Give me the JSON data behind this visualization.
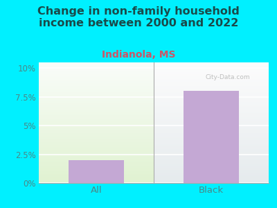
{
  "title": "Change in non-family household\nincome between 2000 and 2022",
  "subtitle": "Indianola, MS",
  "categories": [
    "All",
    "Black"
  ],
  "values": [
    2.0,
    8.0
  ],
  "bar_color": "#c4a8d4",
  "title_fontsize": 11.5,
  "subtitle_fontsize": 10,
  "subtitle_color": "#cc5566",
  "title_color": "#1a4a4a",
  "tick_label_color": "#4a8888",
  "yticks": [
    0,
    2.5,
    5.0,
    7.5,
    10.0
  ],
  "ytick_labels": [
    "0%",
    "2.5%",
    "5%",
    "7.5%",
    "10%"
  ],
  "ylim": [
    0,
    10.5
  ],
  "background_outer": "#00f0ff",
  "watermark": "City-Data.com"
}
